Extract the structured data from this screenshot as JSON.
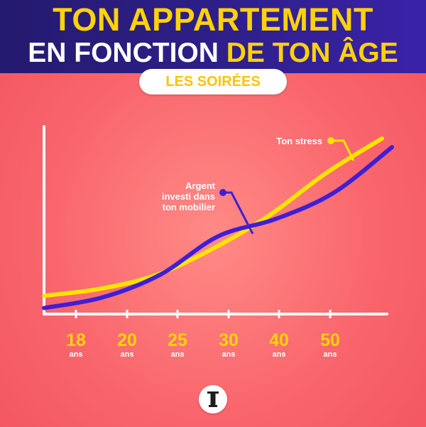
{
  "header": {
    "title_line1": "TON APPARTEMENT",
    "title_line2_part1": "EN FONCTION ",
    "title_line2_part2": "DE TON ÂGE"
  },
  "subtitle_badge": "LES SOIRÉES",
  "colors": {
    "header_bg": "#2f1f8c",
    "accent_yellow": "#ffd20a",
    "background_red": "#f9656c",
    "series_stress": "#ffe400",
    "series_mobilier": "#3f1fd6",
    "axis": "#ffffff"
  },
  "logo_icon": "t-logo-icon",
  "chart_data": {
    "type": "line",
    "categories": [
      "18",
      "20",
      "25",
      "30",
      "40",
      "50"
    ],
    "category_unit": "ans",
    "series": [
      {
        "name": "Ton stress",
        "color": "#ffe400",
        "points": [
          [
            0,
            8
          ],
          [
            1,
            12
          ],
          [
            2,
            20
          ],
          [
            3,
            35
          ],
          [
            4,
            54
          ],
          [
            5,
            78
          ],
          [
            6,
            98
          ]
        ]
      },
      {
        "name": "Argent investi dans ton mobilier",
        "color": "#3f1fd6",
        "points": [
          [
            0,
            1
          ],
          [
            1,
            7
          ],
          [
            2,
            20
          ],
          [
            3,
            42
          ],
          [
            4,
            52
          ],
          [
            5,
            67
          ],
          [
            6,
            93
          ]
        ]
      }
    ],
    "series_labels": [
      {
        "series": 0,
        "lines": [
          "Ton stress"
        ]
      },
      {
        "series": 1,
        "lines": [
          "Argent",
          "investi dans",
          "ton mobilier"
        ]
      }
    ],
    "ylim": [
      0,
      100
    ],
    "y_ticks": false,
    "grid": false,
    "legend": "inline labels with leader lines"
  }
}
